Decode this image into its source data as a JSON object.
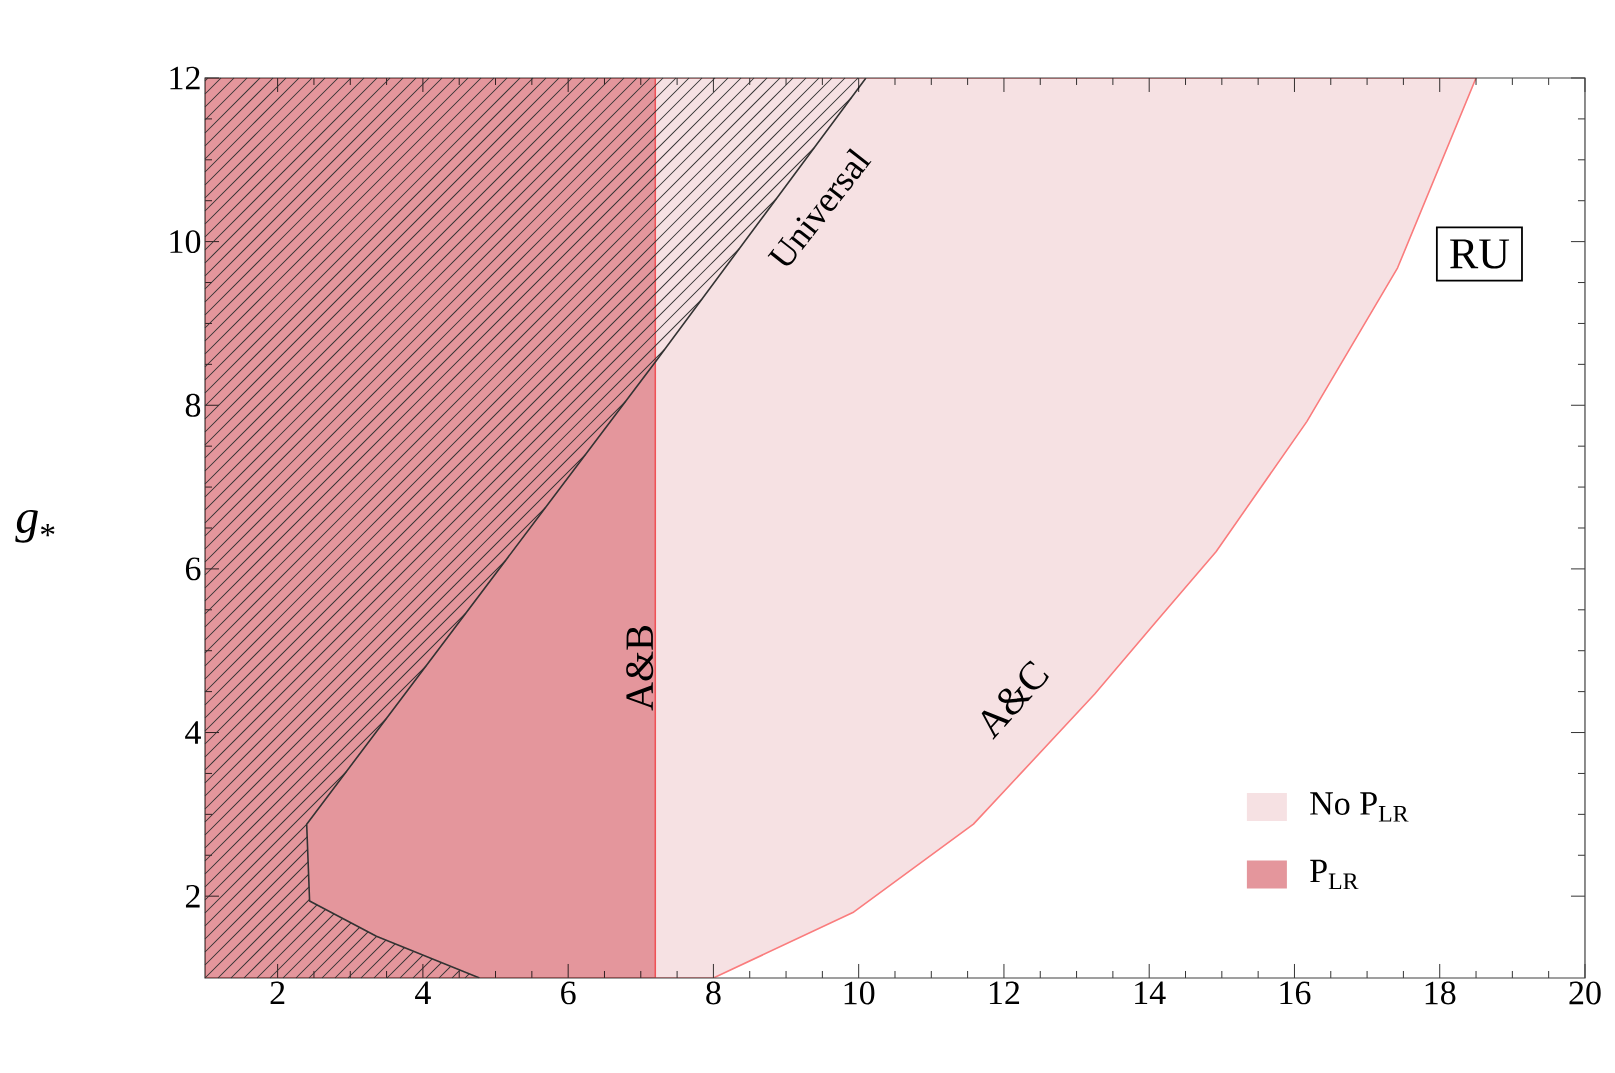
{
  "chart_data": {
    "type": "area",
    "ylabel": "*g*$_{*}$",
    "xlim": [
      1,
      20
    ],
    "xticks": [
      2,
      4,
      6,
      8,
      10,
      12,
      14,
      16,
      18,
      20
    ],
    "ylim": [
      1,
      12
    ],
    "yticks": [
      2,
      4,
      6,
      8,
      10,
      12
    ],
    "legend": "bottom right",
    "series": [
      {
        "name": "No P$_{LR}$",
        "color": "#f6e1e3",
        "x": [
          1,
          8,
          9.92,
          11.58,
          13.25,
          14.08,
          14.92,
          16.17,
          17.42,
          18.5,
          1
        ],
        "values": [
          1,
          1,
          1.8,
          2.88,
          4.47,
          5.34,
          6.21,
          7.8,
          9.68,
          12,
          12
        ]
      },
      {
        "name": "P$_{LR}$",
        "color": "#e4969c",
        "x": [
          1,
          7.2,
          7.2,
          1
        ],
        "values": [
          1,
          1,
          12,
          12
        ]
      },
      {
        "type": "line",
        "color": "#333333",
        "x": [
          4.78,
          3.36,
          2.44,
          2.4,
          7.2,
          10.1
        ],
        "values": [
          1,
          1.51,
          1.94,
          2.88,
          8.53,
          12
        ]
      }
    ],
    "annotations": [
      "Universal",
      "A&B",
      "A&C",
      "RU"
    ]
  }
}
